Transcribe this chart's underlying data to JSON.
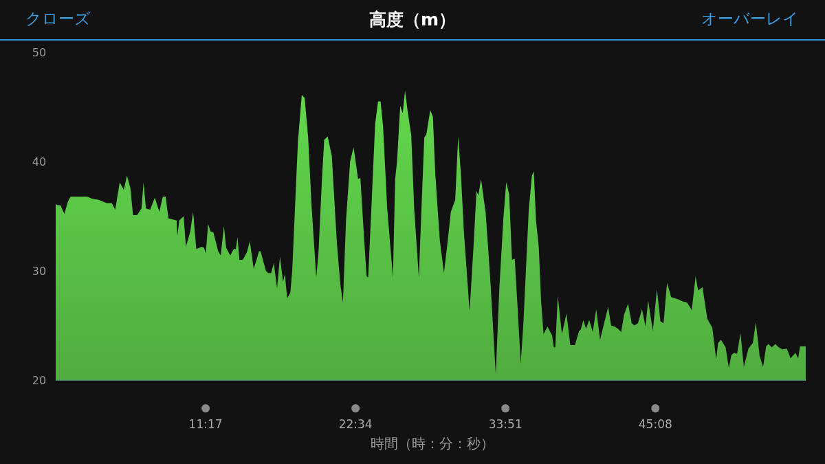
{
  "chart_data": {
    "type": "area",
    "title": "高度（m）",
    "xlabel": "時間（時：分：秒）",
    "annotations": [
      "クローズ",
      "オーバーレイ"
    ],
    "xlim": [
      0,
      56.45
    ],
    "xticks": [
      {
        "value": 11.2833,
        "label": "11:17"
      },
      {
        "value": 22.5667,
        "label": "22:34"
      },
      {
        "value": 33.85,
        "label": "33:51"
      },
      {
        "value": 45.1333,
        "label": "45:08"
      }
    ],
    "ylim": [
      20,
      50
    ],
    "yticks": [
      20,
      30,
      40,
      50
    ],
    "x": [
      0.0,
      0.14,
      0.36,
      0.65,
      0.91,
      1.12,
      2.38,
      2.72,
      3.24,
      3.84,
      4.22,
      4.48,
      4.82,
      5.13,
      5.36,
      5.62,
      5.82,
      6.12,
      6.46,
      6.61,
      6.79,
      7.11,
      7.46,
      7.8,
      8.06,
      8.27,
      8.49,
      8.8,
      9.1,
      9.16,
      9.3,
      9.63,
      9.8,
      10.13,
      10.34,
      10.58,
      10.99,
      11.16,
      11.3,
      11.47,
      11.65,
      11.87,
      12.23,
      12.42,
      12.66,
      12.83,
      13.14,
      13.4,
      13.56,
      13.68,
      13.83,
      14.08,
      14.39,
      14.61,
      14.9,
      15.09,
      15.3,
      15.42,
      15.82,
      15.99,
      16.21,
      16.42,
      16.66,
      16.88,
      17.11,
      17.25,
      17.42,
      17.66,
      17.8,
      18.23,
      18.52,
      18.74,
      19.0,
      19.26,
      19.61,
      19.78,
      20.04,
      20.21,
      20.47,
      20.78,
      21.16,
      21.42,
      21.62,
      21.85,
      22.16,
      22.42,
      22.76,
      22.93,
      23.23,
      23.4,
      23.52,
      23.78,
      24.04,
      24.26,
      24.45,
      24.64,
      24.95,
      25.21,
      25.38,
      25.55,
      25.69,
      25.93,
      26.12,
      26.29,
      26.5,
      26.76,
      26.98,
      27.33,
      27.53,
      27.74,
      27.9,
      28.19,
      28.39,
      28.57,
      28.91,
      29.22,
      29.51,
      29.74,
      30.07,
      30.29,
      30.5,
      30.72,
      31.15,
      31.44,
      31.67,
      31.81,
      32.01,
      32.36,
      32.7,
      33.12,
      33.39,
      33.7,
      33.91,
      34.13,
      34.34,
      34.55,
      34.77,
      35.0,
      35.2,
      35.6,
      35.84,
      35.98,
      36.15,
      36.36,
      36.53,
      36.72,
      37.01,
      37.18,
      37.36,
      37.49,
      37.6,
      37.79,
      38.1,
      38.44,
      38.73,
      39.08,
      39.39,
      39.51,
      39.72,
      39.91,
      40.15,
      40.42,
      40.68,
      40.97,
      41.58,
      41.8,
      42.06,
      42.32,
      42.56,
      42.78,
      43.08,
      43.35,
      43.56,
      43.82,
      44.13,
      44.39,
      44.59,
      44.94,
      45.25,
      45.51,
      45.75,
      46.01,
      46.32,
      46.83,
      47.18,
      47.52,
      47.87,
      48.16,
      48.35,
      48.68,
      49.04,
      49.42,
      49.71,
      49.85,
      50.07,
      50.42,
      50.66,
      50.85,
      51.05,
      51.28,
      51.54,
      51.79,
      52.14,
      52.47,
      52.69,
      52.98,
      53.24,
      53.47,
      53.64,
      53.9,
      54.16,
      54.41,
      54.72,
      55.02,
      55.31,
      55.67,
      55.88,
      56.02,
      56.45
    ],
    "series": [
      {
        "color": "#62d84c",
        "values": [
          36.1,
          36.0,
          36.0,
          35.2,
          36.3,
          36.8,
          36.8,
          36.6,
          36.5,
          36.2,
          36.2,
          35.6,
          38.1,
          37.4,
          38.7,
          37.6,
          35.1,
          35.1,
          35.7,
          38.1,
          35.7,
          35.6,
          36.7,
          35.4,
          36.8,
          36.8,
          34.8,
          34.7,
          34.6,
          33.2,
          34.6,
          35.0,
          32.2,
          33.6,
          35.4,
          32.0,
          32.2,
          32.1,
          31.6,
          34.3,
          33.6,
          33.5,
          31.8,
          31.4,
          34.1,
          32.1,
          31.4,
          32.0,
          32.0,
          33.1,
          31.0,
          31.0,
          31.7,
          32.7,
          30.2,
          30.9,
          31.8,
          31.8,
          30.0,
          29.8,
          29.8,
          30.7,
          28.4,
          31.3,
          29.0,
          29.7,
          27.5,
          28.0,
          30.0,
          41.8,
          46.1,
          45.8,
          42.2,
          35.9,
          29.4,
          31.7,
          38.4,
          42.0,
          42.3,
          40.5,
          32.6,
          28.8,
          27.1,
          34.6,
          40.0,
          41.3,
          38.4,
          38.5,
          32.6,
          29.5,
          29.4,
          36.3,
          43.4,
          45.5,
          45.5,
          43.2,
          35.7,
          31.9,
          29.4,
          38.4,
          40.0,
          45.1,
          44.4,
          46.5,
          44.5,
          42.4,
          35.7,
          29.4,
          35.7,
          42.2,
          42.5,
          44.7,
          44.1,
          38.8,
          32.8,
          29.8,
          32.8,
          35.4,
          36.5,
          42.3,
          38.8,
          33.6,
          26.3,
          32.1,
          37.3,
          36.9,
          38.4,
          35.3,
          29.4,
          20.5,
          28.4,
          34.9,
          38.1,
          37.0,
          31.0,
          31.1,
          26.5,
          21.5,
          25.2,
          35.5,
          38.7,
          39.1,
          34.6,
          32.1,
          27.3,
          24.2,
          24.9,
          24.5,
          24.1,
          23.0,
          23.0,
          27.7,
          24.2,
          26.1,
          23.2,
          23.2,
          24.5,
          24.6,
          25.5,
          24.7,
          25.5,
          24.4,
          26.5,
          23.7,
          26.7,
          25.0,
          24.9,
          24.7,
          24.4,
          26.0,
          27.0,
          25.2,
          25.0,
          25.2,
          26.5,
          24.9,
          27.3,
          24.5,
          28.3,
          25.4,
          25.2,
          28.9,
          27.6,
          27.4,
          27.2,
          27.1,
          26.4,
          29.5,
          28.2,
          28.5,
          25.6,
          24.8,
          21.9,
          23.4,
          23.7,
          23.0,
          21.1,
          22.3,
          22.5,
          22.4,
          24.3,
          21.2,
          22.9,
          23.4,
          25.3,
          22.2,
          21.2,
          23.1,
          23.3,
          23.0,
          23.3,
          23.0,
          22.8,
          22.9,
          22.0,
          22.5,
          22.0,
          23.1,
          23.1
        ]
      }
    ]
  }
}
